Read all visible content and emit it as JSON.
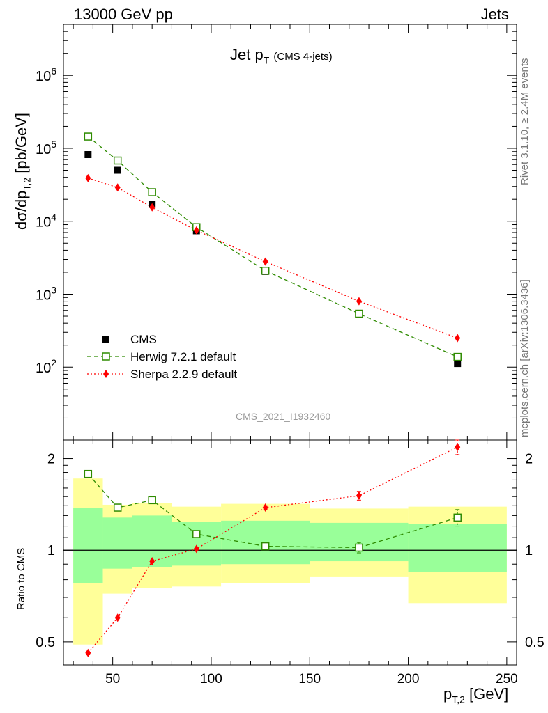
{
  "header": {
    "left": "13000 GeV pp",
    "right": "Jets"
  },
  "side_labels": {
    "rivet": "Rivet 3.1.10, ≥ 2.4M events",
    "source": "mcplots.cern.ch [arXiv:1306.3436]"
  },
  "watermark": "CMS_2021_I1932460",
  "colors": {
    "cms": "#000000",
    "herwig": "#2e8b00",
    "sherpa": "#ff0000",
    "band_inner": "#99ff99",
    "band_outer": "#ffff99"
  },
  "chart_data": [
    {
      "type": "scatter",
      "title": "Jet p_T (CMS 4-jets)",
      "ylabel": "dσ/dp_T,2 [pb/GeV]",
      "yscale": "log",
      "ylim": [
        10,
        5000000
      ],
      "xlim": [
        25,
        255
      ],
      "yticks": [
        "10^2",
        "10^3",
        "10^4",
        "10^5",
        "10^6"
      ],
      "legend": {
        "position": "bottom-left",
        "entries": [
          "CMS",
          "Herwig 7.2.1 default",
          "Sherpa 2.2.9 default"
        ]
      },
      "x": [
        37.5,
        52.5,
        70,
        92.5,
        127.5,
        175,
        225
      ],
      "series": [
        {
          "name": "CMS",
          "values": [
            82000,
            50000,
            17000,
            7400,
            2050,
            530,
            112
          ]
        },
        {
          "name": "Herwig 7.2.1 default",
          "values": [
            145000,
            68000,
            25000,
            8300,
            2100,
            540,
            138
          ]
        },
        {
          "name": "Sherpa 2.2.9 default",
          "values": [
            39000,
            29000,
            15500,
            7500,
            2800,
            800,
            250
          ]
        }
      ]
    },
    {
      "type": "line",
      "ylabel": "Ratio to CMS",
      "xlabel": "p_T,2 [GeV]",
      "ylim": [
        0.42,
        2.3
      ],
      "xlim": [
        25,
        255
      ],
      "xticks": [
        50,
        100,
        150,
        200,
        250
      ],
      "yticks": [
        0.5,
        1,
        2
      ],
      "bins": [
        [
          30,
          45
        ],
        [
          45,
          60
        ],
        [
          60,
          80
        ],
        [
          80,
          105
        ],
        [
          105,
          150
        ],
        [
          150,
          200
        ],
        [
          200,
          250
        ]
      ],
      "band_inner": [
        [
          0.78,
          1.38
        ],
        [
          0.87,
          1.28
        ],
        [
          0.88,
          1.3
        ],
        [
          0.89,
          1.24
        ],
        [
          0.9,
          1.25
        ],
        [
          0.92,
          1.23
        ],
        [
          0.85,
          1.22
        ]
      ],
      "band_outer": [
        [
          0.49,
          1.72
        ],
        [
          0.72,
          1.41
        ],
        [
          0.75,
          1.43
        ],
        [
          0.76,
          1.39
        ],
        [
          0.78,
          1.42
        ],
        [
          0.82,
          1.37
        ],
        [
          0.67,
          1.39
        ]
      ],
      "x": [
        37.5,
        52.5,
        70,
        92.5,
        127.5,
        175,
        225
      ],
      "series": [
        {
          "name": "Herwig 7.2.1 default",
          "values": [
            1.78,
            1.38,
            1.46,
            1.13,
            1.03,
            1.02,
            1.28
          ],
          "errors": [
            0.02,
            0.02,
            0.02,
            0.02,
            0.02,
            0.04,
            0.08
          ]
        },
        {
          "name": "Sherpa 2.2.9 default",
          "values": [
            0.46,
            0.6,
            0.92,
            1.01,
            1.38,
            1.51,
            2.18
          ],
          "errors": [
            0.01,
            0.01,
            0.01,
            0.01,
            0.02,
            0.05,
            0.12
          ]
        }
      ]
    }
  ]
}
